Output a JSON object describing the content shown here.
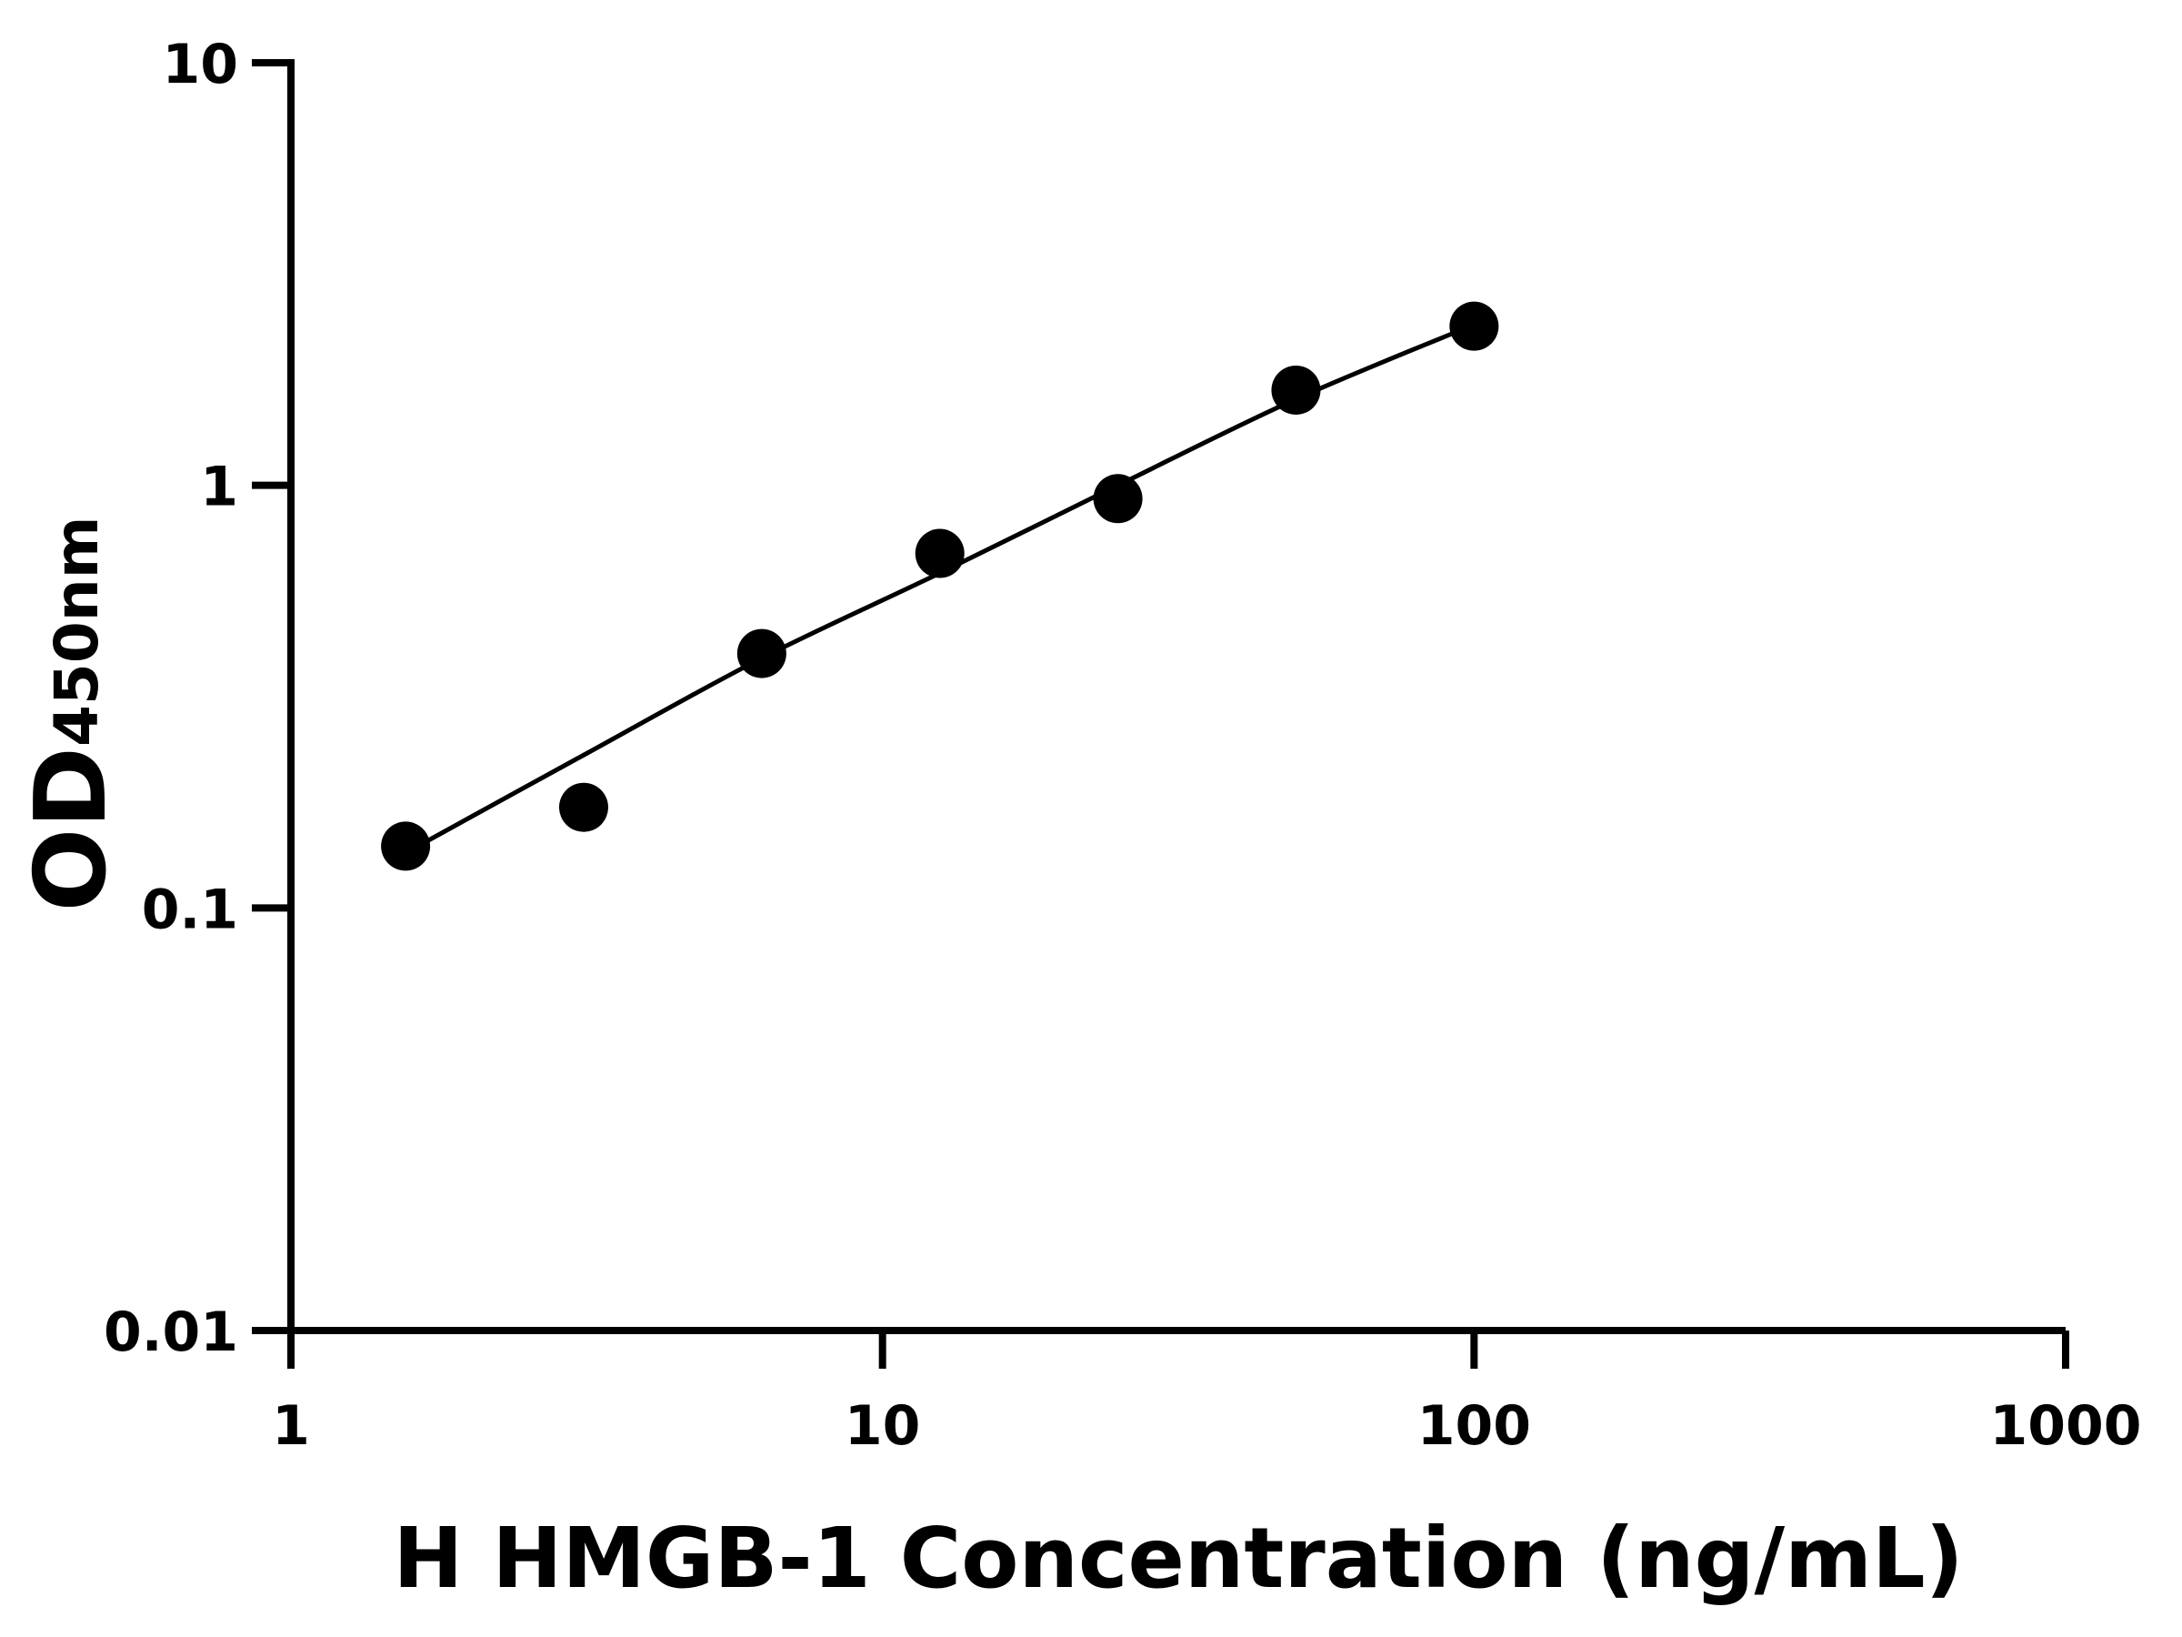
{
  "chart_data": {
    "type": "scatter",
    "title": "",
    "xlabel": "H HMGB-1 Concentration (ng/mL)",
    "ylabel_main": "OD",
    "ylabel_sub": "450nm",
    "x_scale": "log",
    "y_scale": "log",
    "xlim": [
      1,
      1000
    ],
    "ylim": [
      0.01,
      10
    ],
    "x_ticks": [
      1,
      10,
      100,
      1000
    ],
    "x_tick_labels": [
      "1",
      "10",
      "100",
      "1000"
    ],
    "y_ticks": [
      0.01,
      0.1,
      1,
      10
    ],
    "y_tick_labels": [
      "0.01",
      "0.1",
      "1",
      "10"
    ],
    "grid": false,
    "legend": "none",
    "marker_color": "#000000",
    "line_color": "#000000",
    "points": [
      {
        "x": 1.5625,
        "y": 0.14
      },
      {
        "x": 3.125,
        "y": 0.173
      },
      {
        "x": 6.25,
        "y": 0.4
      },
      {
        "x": 12.5,
        "y": 0.69
      },
      {
        "x": 25,
        "y": 0.93
      },
      {
        "x": 50,
        "y": 1.68
      },
      {
        "x": 100,
        "y": 2.38
      }
    ],
    "fit_curve": [
      {
        "x": 1.5625,
        "y": 0.135
      },
      {
        "x": 3.125,
        "y": 0.23
      },
      {
        "x": 6.25,
        "y": 0.39
      },
      {
        "x": 12.5,
        "y": 0.62
      },
      {
        "x": 25,
        "y": 1.0
      },
      {
        "x": 50,
        "y": 1.6
      },
      {
        "x": 100,
        "y": 2.4
      }
    ]
  }
}
